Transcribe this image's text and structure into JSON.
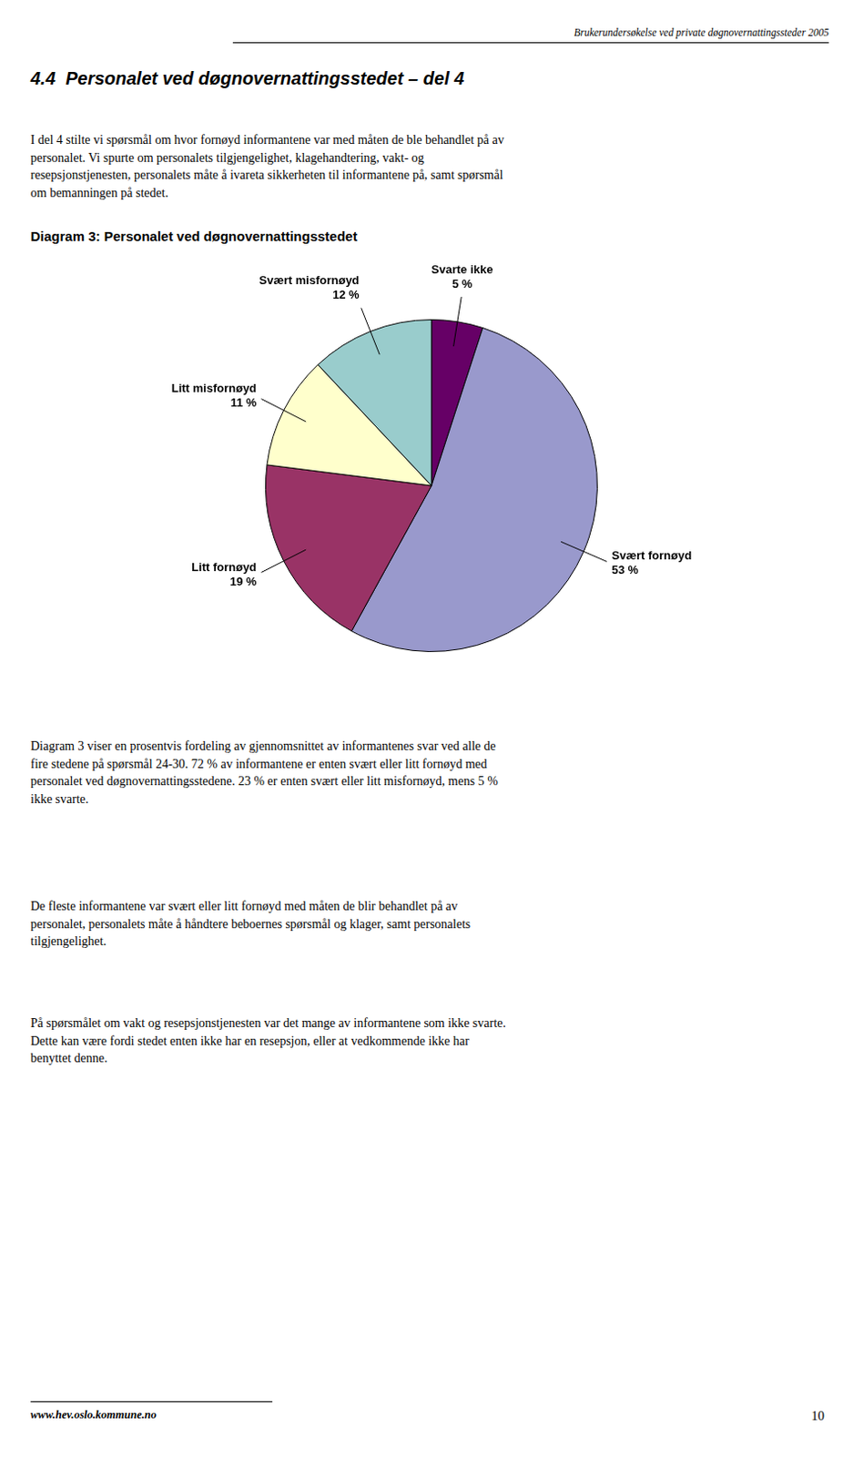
{
  "chart_data": {
    "type": "pie",
    "title": "Diagram 3: Personalet ved døgnovernattingsstedet",
    "categories": [
      "Svarte ikke",
      "Svært fornøyd",
      "Litt fornøyd",
      "Litt misfornøyd",
      "Svært misfornøyd"
    ],
    "values": [
      5,
      53,
      19,
      11,
      12
    ],
    "value_labels": [
      "5 %",
      "53 %",
      "19 %",
      "11 %",
      "12 %"
    ],
    "colors": [
      "#660066",
      "#9999CC",
      "#993366",
      "#FFFFCC",
      "#99CCCC"
    ],
    "data_labels": true,
    "legend": false,
    "annotations": [
      "Brukerundersøkelse ved private døgnovernattingssteder 2005",
      "4.4  Personalet ved døgnovernattingsstedet – del 4",
      "I del 4 stilte vi spørsmål om hvor fornøyd informantene var med måten de ble behandlet på av\npersonalet. Vi spurte om personalets tilgjengelighet, klagehandtering, vakt- og\nresepsjonstjenesten, personalets måte å ivareta sikkerheten til informantene på, samt spørsmål\nom bemanningen på stedet.",
      "Diagram 3 viser en prosentvis fordeling av gjennomsnittet av informantenes svar ved alle de\nfire stedene på spørsmål 24-30. 72 % av informantene er enten svært eller litt fornøyd med\npersonalet ved døgnovernattingsstedene. 23 % er enten svært eller litt misfornøyd, mens 5 %\nikke svarte.",
      "De fleste informantene var svært eller litt fornøyd med måten de blir behandlet på av\npersonalet, personalets måte å håndtere beboernes spørsmål og klager, samt personalets\ntilgjengelighet.",
      "På spørsmålet om vakt og resepsjonstjenesten var det mange av informantene som ikke svarte.\nDette kan være fordi stedet enten ikke har en resepsjon, eller at vedkommende ikke har\nbenyttet denne.",
      "www.hev.oslo.kommune.no",
      "10"
    ]
  }
}
